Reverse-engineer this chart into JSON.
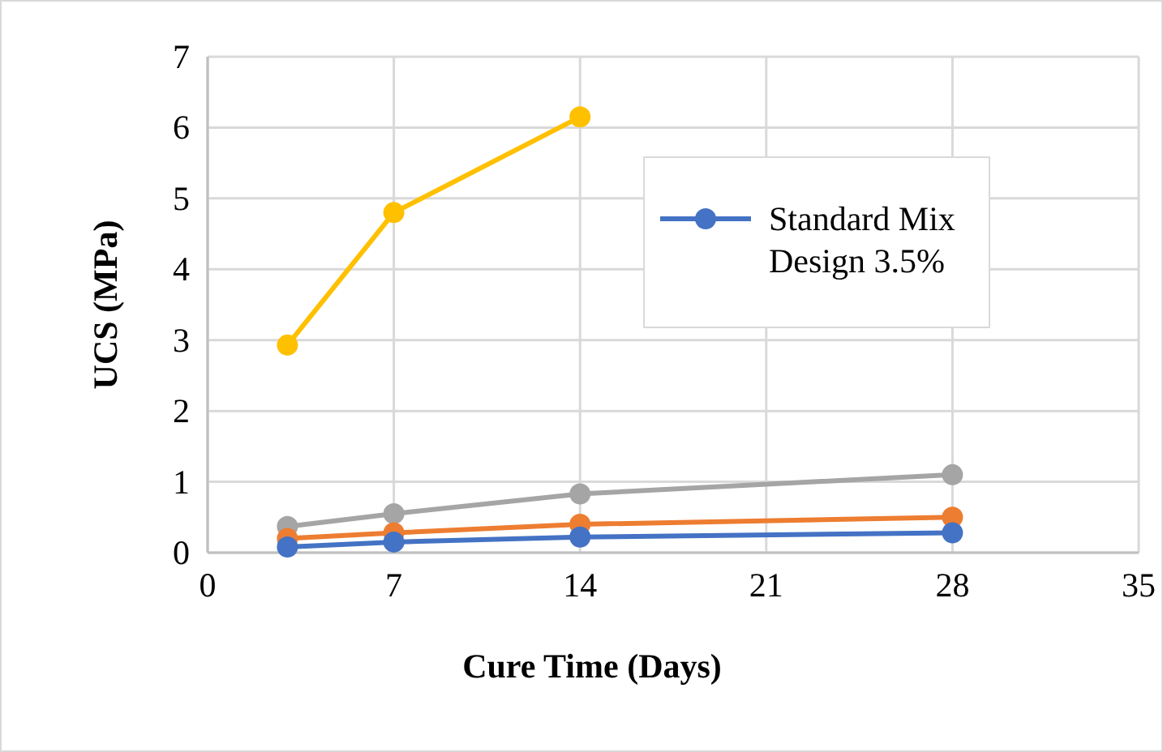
{
  "chart_data": {
    "type": "line",
    "xlabel": "Cure Time (Days)",
    "ylabel": "UCS (MPa)",
    "x": [
      3,
      7,
      14,
      28
    ],
    "series": [
      {
        "name": "Standard Mix Design 3.5%",
        "color": "#4472c4",
        "values": [
          0.08,
          0.15,
          0.22,
          0.28
        ]
      },
      {
        "color": "#ed7d31",
        "values": [
          0.2,
          0.28,
          0.4,
          0.5
        ]
      },
      {
        "color": "#a5a5a5",
        "values": [
          0.37,
          0.55,
          0.83,
          1.1
        ]
      },
      {
        "color": "#ffc000",
        "x": [
          3,
          7,
          14
        ],
        "values": [
          2.93,
          4.8,
          6.15
        ]
      }
    ],
    "xlim": [
      0,
      35
    ],
    "xticks": [
      0,
      7,
      14,
      21,
      28,
      35
    ],
    "ylim": [
      0,
      7
    ],
    "yticks": [
      0,
      1,
      2,
      3,
      4,
      5,
      6,
      7
    ],
    "grid": true,
    "legend": "top right",
    "marker": "circle",
    "line_style": "solid"
  }
}
